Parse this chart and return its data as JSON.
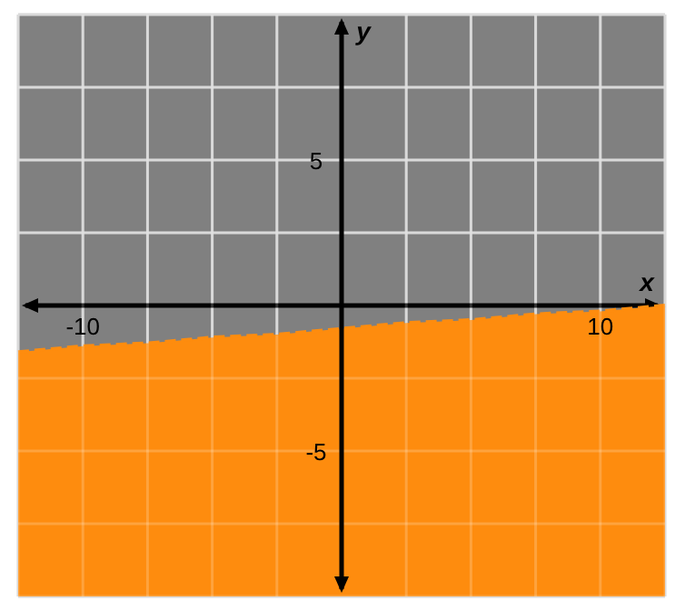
{
  "chart_data": {
    "type": "line",
    "xlabel": "x",
    "ylabel": "y",
    "xlim": [
      -12.5,
      12.5
    ],
    "ylim": [
      -10,
      10
    ],
    "xticks": [
      {
        "value": -12.5,
        "label": null
      },
      -10,
      {
        "value": -7.5,
        "label": null
      },
      {
        "value": -5,
        "label": null
      },
      {
        "value": -2.5,
        "label": null
      },
      {
        "value": 2.5,
        "label": null
      },
      {
        "value": 5,
        "label": null
      },
      {
        "value": 7.5,
        "label": null
      },
      10,
      {
        "value": 12.5,
        "label": null
      }
    ],
    "yticks": [
      {
        "value": -10,
        "label": null
      },
      {
        "value": -7.5,
        "label": null
      },
      -5,
      {
        "value": -2.5,
        "label": null
      },
      {
        "value": 2.5,
        "label": null
      },
      5,
      {
        "value": 7.5,
        "label": null
      },
      {
        "value": 10,
        "label": null
      }
    ],
    "grid": true,
    "line_style": "dashed",
    "series": [
      {
        "color": "#fe8c0e",
        "x": [
          -12.5,
          -10,
          -7.5,
          -5,
          -2.5,
          0,
          2.5,
          5,
          7.5,
          10,
          12.5
        ],
        "values": [
          -1.6,
          -1.4,
          -1.3,
          -1.1,
          -1.0,
          -0.8,
          -0.6,
          -0.5,
          -0.3,
          -0.2,
          0
        ],
        "lower": [
          -10,
          -10,
          -10,
          -10,
          -10,
          -10,
          -10,
          -10,
          -10,
          -10,
          -10
        ],
        "upper": [
          -1.6,
          -1.4,
          -1.3,
          -1.1,
          -1.0,
          -0.8,
          -0.6,
          -0.5,
          -0.3,
          -0.2,
          0
        ]
      }
    ]
  }
}
